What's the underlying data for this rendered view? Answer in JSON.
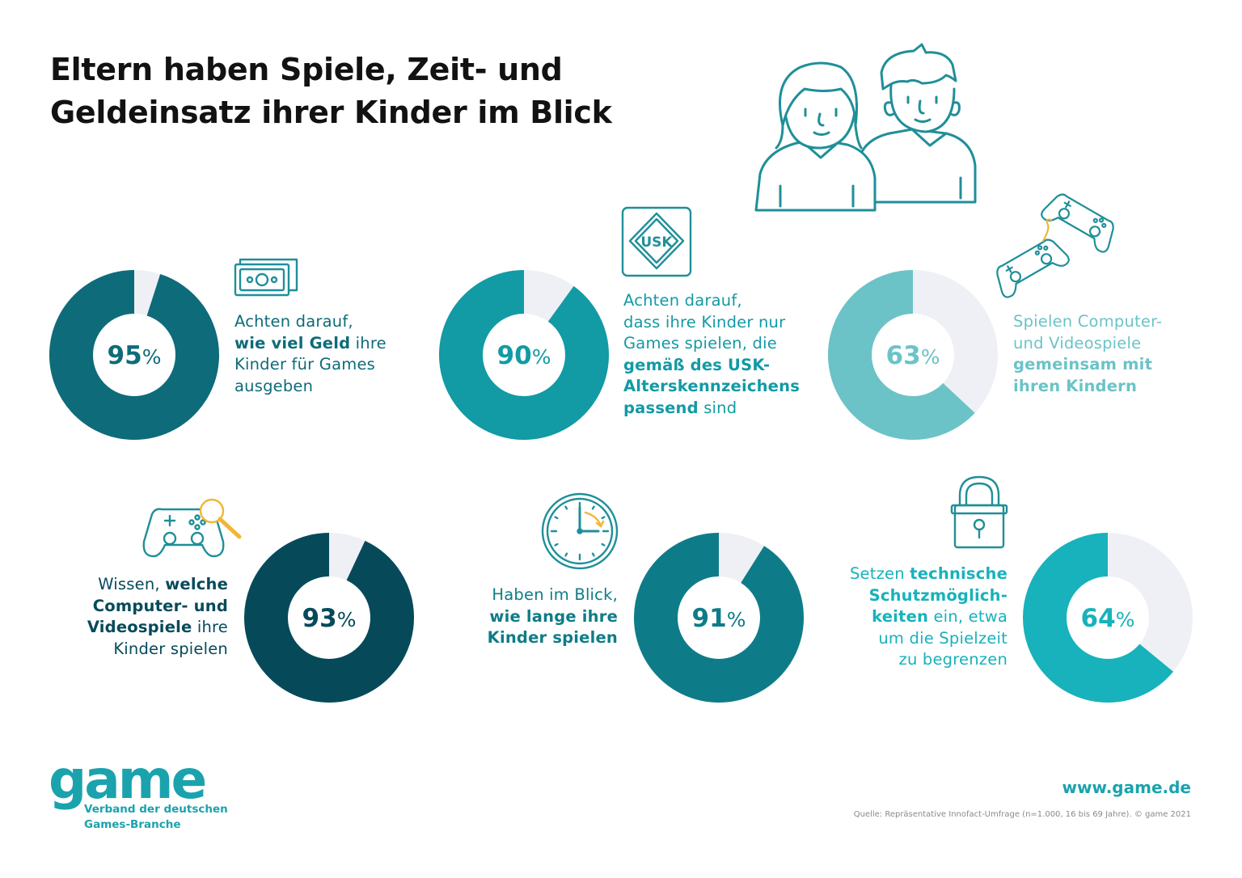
{
  "title": {
    "line1": "Eltern haben Spiele, Zeit- und",
    "line2": "Geldeinsatz ihrer Kinder im Blick"
  },
  "chart_data": [
    {
      "type": "pie",
      "value": 95,
      "value_label": "95",
      "unit": "%",
      "color": "#0e6b7a",
      "track_color": "#eef0f5",
      "text_lines": [
        [
          {
            "t": "Achten darauf,"
          }
        ],
        [
          {
            "t": "wie viel Geld",
            "b": true
          },
          {
            "t": " ihre"
          }
        ],
        [
          {
            "t": "Kinder für Games"
          }
        ],
        [
          {
            "t": "ausgeben"
          }
        ]
      ]
    },
    {
      "type": "pie",
      "value": 90,
      "value_label": "90",
      "unit": "%",
      "color": "#129aa5",
      "track_color": "#eef0f5",
      "text_lines": [
        [
          {
            "t": "Achten darauf,"
          }
        ],
        [
          {
            "t": "dass ihre Kinder nur"
          }
        ],
        [
          {
            "t": "Games spielen, die"
          }
        ],
        [
          {
            "t": "gemäß des USK-",
            "b": true
          }
        ],
        [
          {
            "t": "Alterskennzeichens",
            "b": true
          }
        ],
        [
          {
            "t": "passend",
            "b": true
          },
          {
            "t": " sind"
          }
        ]
      ]
    },
    {
      "type": "pie",
      "value": 63,
      "value_label": "63",
      "unit": "%",
      "color": "#6bc3c7",
      "track_color": "#eef0f5",
      "text_lines": [
        [
          {
            "t": "Spielen Computer-"
          }
        ],
        [
          {
            "t": "und Videospiele"
          }
        ],
        [
          {
            "t": "gemeinsam mit",
            "b": true
          }
        ],
        [
          {
            "t": "ihren Kindern",
            "b": true
          }
        ]
      ]
    },
    {
      "type": "pie",
      "value": 93,
      "value_label": "93",
      "unit": "%",
      "color": "#064a5a",
      "track_color": "#eef0f5",
      "text_lines": [
        [
          {
            "t": "Wissen, "
          },
          {
            "t": "welche",
            "b": true
          }
        ],
        [
          {
            "t": "Computer- und",
            "b": true
          }
        ],
        [
          {
            "t": "Videospiele",
            "b": true
          },
          {
            "t": " ihre"
          }
        ],
        [
          {
            "t": "Kinder spielen"
          }
        ]
      ]
    },
    {
      "type": "pie",
      "value": 91,
      "value_label": "91",
      "unit": "%",
      "color": "#0e7c88",
      "track_color": "#eef0f5",
      "text_lines": [
        [
          {
            "t": "Haben im Blick,"
          }
        ],
        [
          {
            "t": "wie lange ihre",
            "b": true
          }
        ],
        [
          {
            "t": "Kinder spielen",
            "b": true
          }
        ]
      ]
    },
    {
      "type": "pie",
      "value": 64,
      "value_label": "64",
      "unit": "%",
      "color": "#17b2bc",
      "track_color": "#eef0f5",
      "text_lines": [
        [
          {
            "t": "Setzen "
          },
          {
            "t": "technische",
            "b": true
          }
        ],
        [
          {
            "t": "Schutzmöglich-",
            "b": true
          }
        ],
        [
          {
            "t": "keiten",
            "b": true
          },
          {
            "t": " ein, etwa"
          }
        ],
        [
          {
            "t": "um die Spielzeit"
          }
        ],
        [
          {
            "t": "zu begrenzen"
          }
        ]
      ]
    }
  ],
  "icons": {
    "parents": "parents-icon",
    "money": "money-bill-icon",
    "usk": "usk-label-icon",
    "usk_text": "USK",
    "controllers": "two-controllers-icon",
    "controller_search": "controller-magnifier-icon",
    "clock": "clock-icon",
    "lock": "padlock-icon"
  },
  "colors": {
    "brand": "#1aa3ad",
    "icon_stroke": "#1f8f99",
    "accent": "#f2b535"
  },
  "footer": {
    "logo": "game",
    "sub1": "Verband der deutschen",
    "sub2": "Games-Branche",
    "url": "www.game.de",
    "source": "Quelle: Repräsentative Innofact-Umfrage (n=1.000, 16 bis 69 Jahre). © game 2021"
  }
}
